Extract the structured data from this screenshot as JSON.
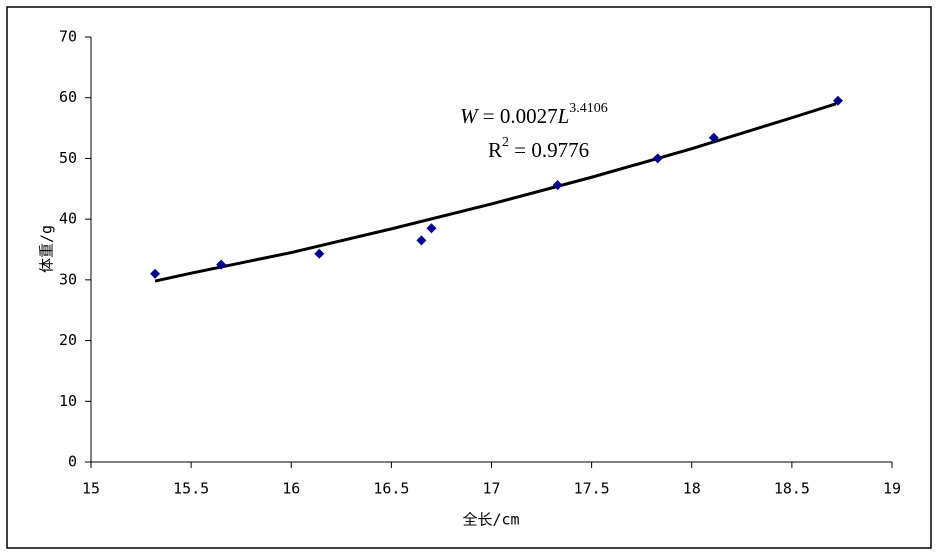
{
  "chart_data": {
    "type": "scatter",
    "x_label": "全长/cm",
    "y_label": "体重/g",
    "xlim": [
      15,
      19
    ],
    "xticks": [
      15,
      15.5,
      16,
      16.5,
      17,
      17.5,
      18,
      18.5,
      19
    ],
    "ylim": [
      0,
      70
    ],
    "yticks": [
      0,
      10,
      20,
      30,
      40,
      50,
      60,
      70
    ],
    "grid": false,
    "points": {
      "color": "#00008b",
      "x": [
        15.32,
        15.65,
        16.14,
        16.65,
        16.7,
        17.33,
        17.83,
        18.11,
        18.73
      ],
      "values": [
        31,
        32.5,
        34.3,
        36.5,
        38.5,
        45.6,
        50,
        53.4,
        59.5
      ]
    },
    "trendline": {
      "color": "#000000",
      "x": [
        15.32,
        15.5,
        16,
        16.5,
        17,
        17.5,
        18,
        18.5,
        18.72
      ],
      "values": [
        29.8,
        31.1,
        34.5,
        38.4,
        42.5,
        46.9,
        51.6,
        56.7,
        59.0
      ]
    },
    "equation": {
      "lhs": "W",
      "mid": " = 0.0027",
      "var": "L",
      "exponent": "3.4106"
    },
    "r_squared": {
      "base": "R",
      "exponent": "2",
      "rest": " = 0.9776"
    }
  }
}
